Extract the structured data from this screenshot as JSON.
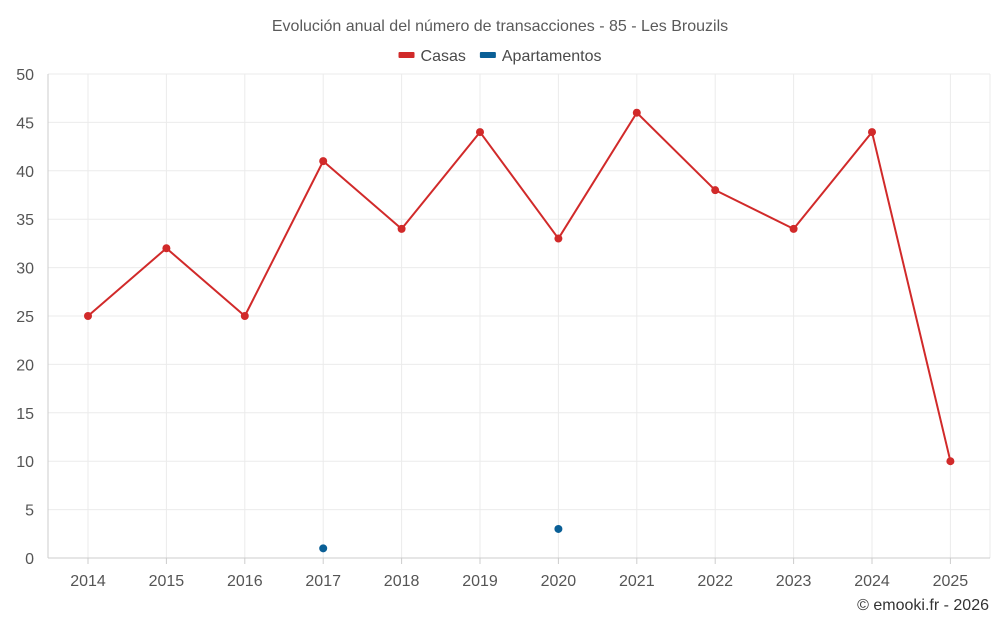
{
  "chart_data": {
    "type": "line",
    "title": "Evolución anual del número de transacciones - 85 - Les Brouzils",
    "categories": [
      "2014",
      "2015",
      "2016",
      "2017",
      "2018",
      "2019",
      "2020",
      "2021",
      "2022",
      "2023",
      "2024",
      "2025"
    ],
    "series": [
      {
        "name": "Casas",
        "color": "#d12a2a",
        "values": [
          25,
          32,
          25,
          41,
          34,
          44,
          33,
          46,
          38,
          34,
          44,
          10
        ]
      },
      {
        "name": "Apartamentos",
        "color": "#0a5f96",
        "values": [
          null,
          null,
          null,
          1,
          null,
          null,
          3,
          null,
          null,
          null,
          null,
          null
        ]
      }
    ],
    "ylim": [
      0,
      50
    ],
    "yticks": [
      0,
      5,
      10,
      15,
      20,
      25,
      30,
      35,
      40,
      45,
      50
    ],
    "xlabel": "",
    "ylabel": "",
    "grid": true,
    "legend": "top-center"
  },
  "credit": "© emooki.fr - 2026"
}
